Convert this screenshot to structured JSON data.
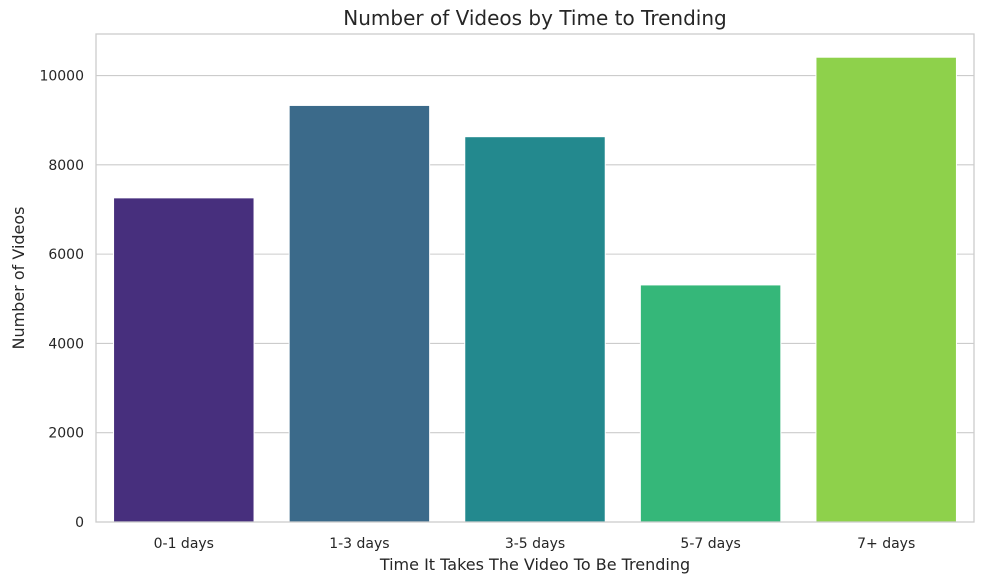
{
  "chart_data": {
    "type": "bar",
    "title": "Number of Videos by Time to Trending",
    "xlabel": "Time It Takes The Video To Be Trending",
    "ylabel": "Number of Videos",
    "categories": [
      "0-1 days",
      "1-3 days",
      "3-5 days",
      "5-7 days",
      "7+ days"
    ],
    "values": [
      7260,
      9330,
      8630,
      5310,
      10410
    ],
    "colors": [
      "#472f7d",
      "#3b6a8a",
      "#23898e",
      "#35b779",
      "#8ed14b"
    ],
    "ylim": [
      0,
      10930
    ],
    "yticks": [
      0,
      2000,
      4000,
      6000,
      8000,
      10000
    ],
    "ytick_labels": [
      "0",
      "2000",
      "4000",
      "6000",
      "8000",
      "10000"
    ],
    "grid": true,
    "grid_axis": "y"
  }
}
